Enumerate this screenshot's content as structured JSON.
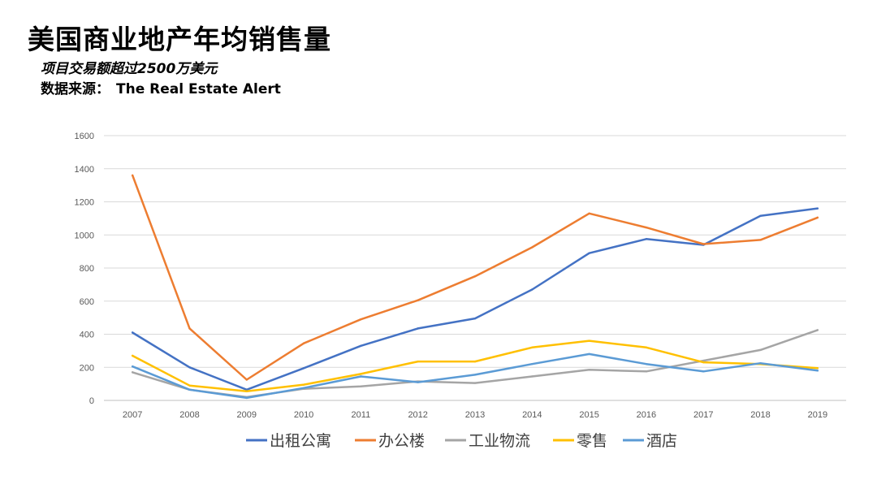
{
  "header": {
    "title": "美国商业地产年均销售量",
    "subtitle": "项目交易额超过2500万美元",
    "source_label": "数据来源：",
    "source_name": "The Real Estate Alert"
  },
  "chart_data": {
    "type": "line",
    "title": "",
    "xlabel": "",
    "ylabel": "",
    "ylim": [
      0,
      1600
    ],
    "yticks": [
      0,
      200,
      400,
      600,
      800,
      1000,
      1200,
      1400,
      1600
    ],
    "grid": true,
    "legend_position": "bottom",
    "categories": [
      "2007",
      "2008",
      "2009",
      "2010",
      "2011",
      "2012",
      "2013",
      "2014",
      "2015",
      "2016",
      "2017",
      "2018",
      "2019"
    ],
    "series": [
      {
        "name": "出租公寓",
        "color": "#4472C4",
        "values": [
          410,
          200,
          65,
          195,
          330,
          435,
          495,
          670,
          890,
          975,
          940,
          1115,
          1160
        ]
      },
      {
        "name": "办公楼",
        "color": "#ED7D31",
        "values": [
          1360,
          435,
          125,
          345,
          490,
          605,
          750,
          925,
          1130,
          1045,
          945,
          970,
          1105
        ]
      },
      {
        "name": "工业物流",
        "color": "#A5A5A5",
        "values": [
          170,
          65,
          20,
          70,
          85,
          115,
          105,
          145,
          185,
          175,
          240,
          305,
          425
        ]
      },
      {
        "name": "零售",
        "color": "#FFC000",
        "values": [
          270,
          90,
          55,
          95,
          160,
          235,
          235,
          320,
          360,
          320,
          230,
          220,
          195
        ]
      },
      {
        "name": "酒店",
        "color": "#5B9BD5",
        "values": [
          205,
          65,
          15,
          75,
          145,
          110,
          155,
          220,
          280,
          220,
          175,
          225,
          180
        ]
      }
    ]
  }
}
